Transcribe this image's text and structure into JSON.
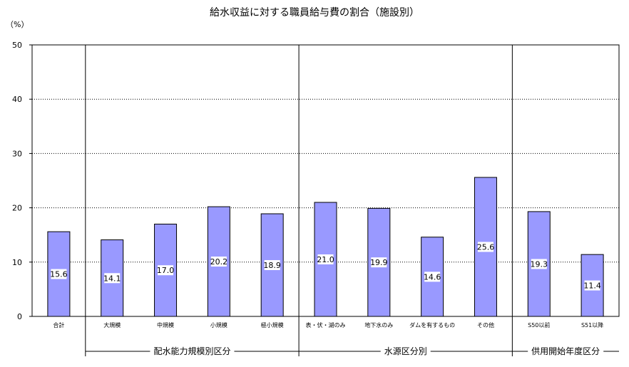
{
  "chart_data": {
    "type": "bar",
    "title": "給水収益に対する職員給与費の割合（施設別）",
    "ylabel": "（%）",
    "xlabel": "",
    "ylim": [
      0,
      50
    ],
    "yticks": [
      "0",
      "10",
      "20",
      "30",
      "40",
      "50"
    ],
    "grid": true,
    "legend": "none",
    "bar_color": "#9999ff",
    "categories": [
      "合計",
      "大規模",
      "中規模",
      "小規模",
      "極小規模",
      "表・伏・湖のみ",
      "地下水のみ",
      "ダムを有するもの",
      "その他",
      "S50以前",
      "S51以降"
    ],
    "values": [
      15.6,
      14.1,
      17.0,
      20.2,
      18.9,
      21.0,
      19.9,
      14.6,
      25.6,
      19.3,
      11.4
    ],
    "data_labels": [
      "15.6",
      "14.1",
      "17.0",
      "20.2",
      "18.9",
      "21.0",
      "19.9",
      "14.6",
      "25.6",
      "19.3",
      "11.4"
    ],
    "groups": [
      {
        "name": "配水能力規模別区分",
        "categories": [
          "大規模",
          "中規模",
          "小規模",
          "極小規模"
        ]
      },
      {
        "name": "水源区分別",
        "categories": [
          "表・伏・湖のみ",
          "地下水のみ",
          "ダムを有するもの",
          "その他"
        ]
      },
      {
        "name": "供用開始年度区分",
        "categories": [
          "S50以前",
          "S51以降"
        ]
      }
    ]
  }
}
